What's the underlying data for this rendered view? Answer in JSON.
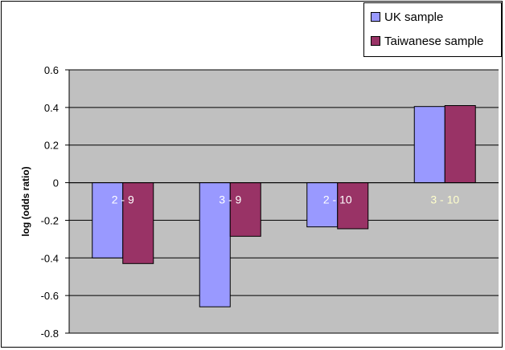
{
  "chart_data": {
    "type": "bar",
    "categories": [
      "2 - 9",
      "3 - 9",
      "2 - 10",
      "3 - 10"
    ],
    "series": [
      {
        "name": "UK sample",
        "values": [
          -0.4,
          -0.66,
          -0.235,
          0.405
        ],
        "color": "#9999ff"
      },
      {
        "name": "Taiwanese sample",
        "values": [
          -0.43,
          -0.285,
          -0.245,
          0.41
        ],
        "color": "#993366"
      }
    ],
    "title": "",
    "xlabel": "",
    "ylabel": "log (odds ratio)",
    "ylim": [
      -0.8,
      0.6
    ],
    "yticks": [
      "0.6",
      "0.4",
      "0.2",
      "0",
      "-0.2",
      "-0.4",
      "-0.6",
      "-0.8"
    ],
    "ytick_values": [
      0.6,
      0.4,
      0.2,
      0,
      -0.2,
      -0.4,
      -0.6,
      -0.8
    ],
    "grid": true,
    "legend_position": "top-right",
    "plot_background": "#c0c0c0",
    "category_label_colors": [
      "#ffffff",
      "#ffffff",
      "#ffffff",
      "#ffffcc"
    ]
  }
}
